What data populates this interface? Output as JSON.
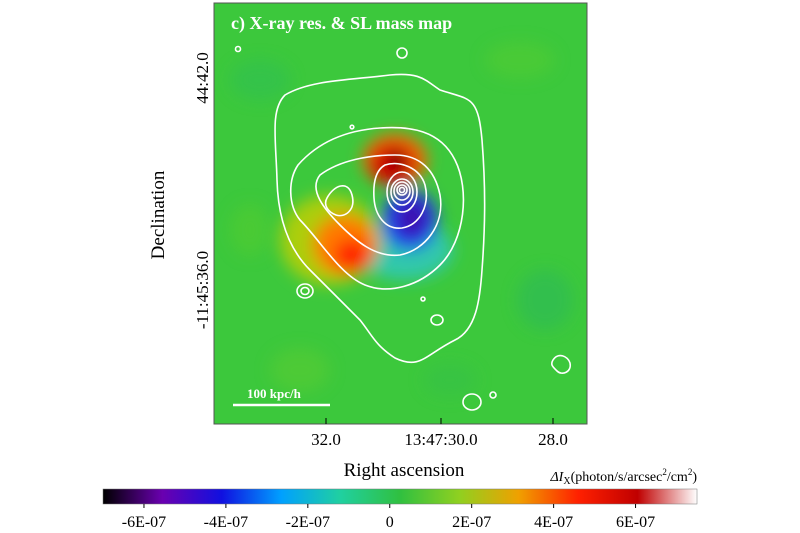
{
  "chart_data": {
    "type": "heatmap",
    "title": "c) X-ray res. & SL mass map",
    "xlabel": "Right ascension",
    "ylabel": "Declination",
    "x_ticks": [
      "32.0",
      "13:47:30.0",
      "28.0"
    ],
    "y_ticks": [
      "44:42.0",
      "-11:45:36.0"
    ],
    "scale_bar": "100 kpc/h",
    "colorbar": {
      "label_prefix": "ΔI",
      "label_sub": "X",
      "label_unit_a": "(photon/s/arcsec",
      "label_unit_b": "/cm",
      "label_unit_c": ")",
      "label_sup": "2",
      "range": [
        -7e-07,
        7.5e-07
      ],
      "ticks": [
        {
          "label": "-6E-07",
          "value": -6e-07
        },
        {
          "label": "-4E-07",
          "value": -4e-07
        },
        {
          "label": "-2E-07",
          "value": -2e-07
        },
        {
          "label": "0",
          "value": 0
        },
        {
          "label": "2E-07",
          "value": 2e-07
        },
        {
          "label": "4E-07",
          "value": 4e-07
        },
        {
          "label": "6E-07",
          "value": 6e-07
        }
      ],
      "colors": [
        "#000000",
        "#6a00b0",
        "#1010e0",
        "#00a0ff",
        "#20d0a0",
        "#30c040",
        "#90d020",
        "#f0a000",
        "#ff2000",
        "#c00000",
        "#ffffff"
      ]
    },
    "residual_features": [
      {
        "name": "positive-north",
        "value": 6e-07,
        "color": "#d00000"
      },
      {
        "name": "negative-south",
        "value": -5e-07,
        "color": "#2010c0"
      },
      {
        "name": "positive-southeast",
        "value": 4.5e-07,
        "color": "#ff5000"
      },
      {
        "name": "negative-east",
        "value": -1.5e-07,
        "color": "#20c0c0"
      }
    ],
    "background_color": "#3cc83c",
    "contour_color": "#ffffff"
  }
}
